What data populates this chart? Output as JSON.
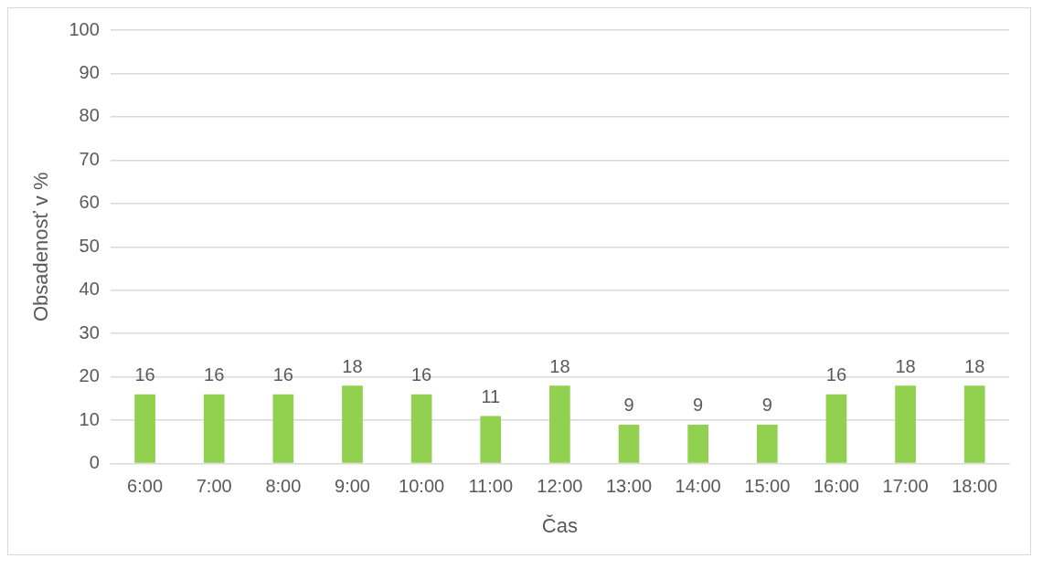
{
  "chart_data": {
    "type": "bar",
    "xlabel": "Čas",
    "ylabel": "Obsadenosť v %",
    "categories": [
      "6:00",
      "7:00",
      "8:00",
      "9:00",
      "10:00",
      "11:00",
      "12:00",
      "13:00",
      "14:00",
      "15:00",
      "16:00",
      "17:00",
      "18:00"
    ],
    "values": [
      16,
      16,
      16,
      18,
      16,
      11,
      18,
      9,
      9,
      9,
      16,
      18,
      18
    ],
    "color": "#92d050",
    "ylim": [
      0,
      100
    ],
    "yticks": [
      0,
      10,
      20,
      30,
      40,
      50,
      60,
      70,
      80,
      90,
      100
    ],
    "grid": "y",
    "data_labels": true,
    "legend": false
  }
}
